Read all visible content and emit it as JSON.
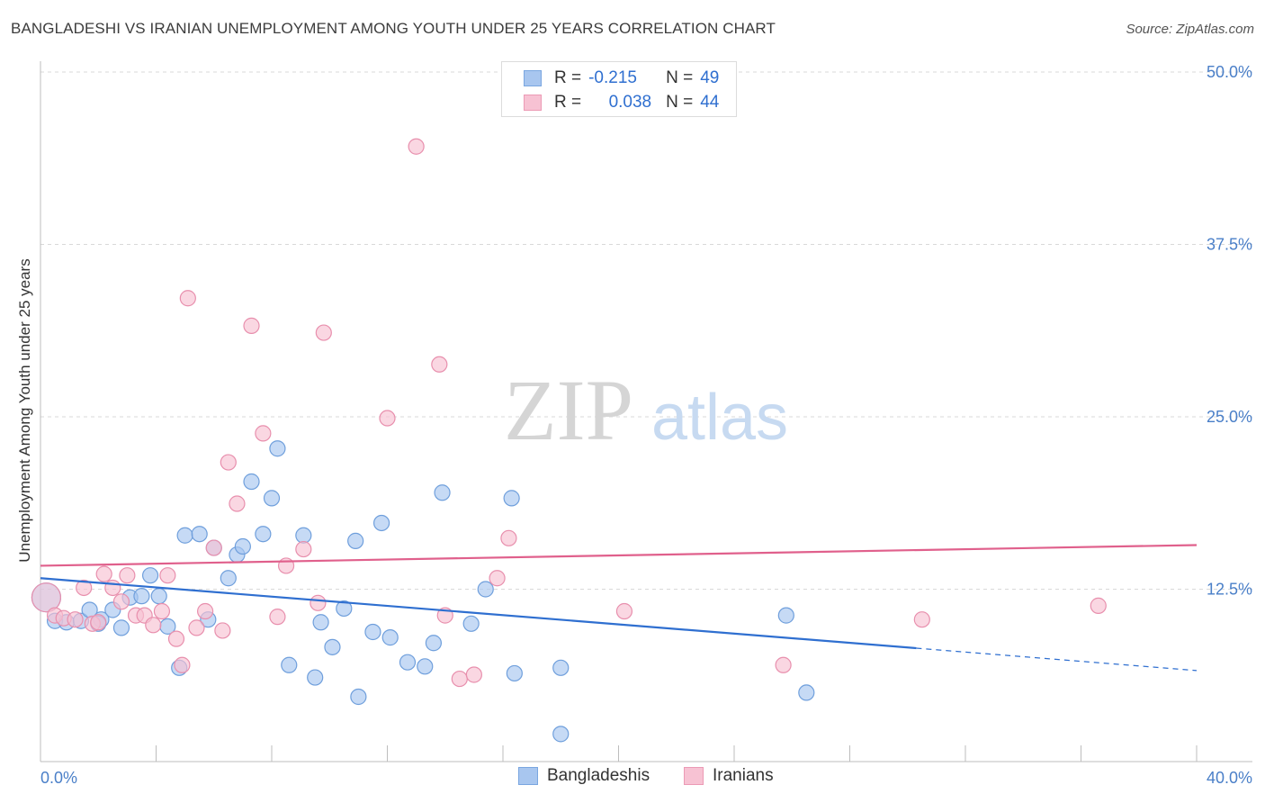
{
  "header": {
    "title": "BANGLADESHI VS IRANIAN UNEMPLOYMENT AMONG YOUTH UNDER 25 YEARS CORRELATION CHART",
    "source": "Source: ZipAtlas.com"
  },
  "legend": {
    "rows": [
      {
        "r_label": "R =",
        "r_value": "-0.215",
        "n_label": "N =",
        "n_value": "49",
        "color": "#a8c6ef",
        "border": "#7aa6e0"
      },
      {
        "r_label": "R =",
        "r_value": "0.038",
        "n_label": "N =",
        "n_value": "44",
        "color": "#f7c2d3",
        "border": "#ec9ab5"
      }
    ]
  },
  "watermark": {
    "zip": "ZIP",
    "atlas": "atlas"
  },
  "bottom_legend": {
    "a": "Bangladeshis",
    "b": "Iranians"
  },
  "colors": {
    "blue_fill": "#a8c6ef",
    "blue_stroke": "#6f9fdc",
    "blue_line": "#2f6fd0",
    "pink_fill": "#f7c2d3",
    "pink_stroke": "#e88fad",
    "pink_line": "#e0608c",
    "grid": "#d9d9d9",
    "tick_text": "#4a7fc8"
  },
  "chart_data": {
    "type": "scatter",
    "title": "BANGLADESHI VS IRANIAN UNEMPLOYMENT AMONG YOUTH UNDER 25 YEARS CORRELATION CHART",
    "xlabel": "",
    "ylabel": "Unemployment Among Youth under 25 years",
    "xlim": [
      0,
      40
    ],
    "ylim": [
      0,
      50
    ],
    "x_tick_labels": [
      "0.0%",
      "40.0%"
    ],
    "y_ticks": [
      12.5,
      25.0,
      37.5,
      50.0
    ],
    "y_tick_labels": [
      "12.5%",
      "25.0%",
      "37.5%",
      "50.0%"
    ],
    "grid": "horizontal dashed",
    "legend_position": "top-center",
    "series": [
      {
        "name": "Bangladeshis",
        "points": [
          [
            0.2,
            11.9
          ],
          [
            0.5,
            10.2
          ],
          [
            0.9,
            10.1
          ],
          [
            1.4,
            10.2
          ],
          [
            1.7,
            11.0
          ],
          [
            2.1,
            10.3
          ],
          [
            2.5,
            11.0
          ],
          [
            2.8,
            9.7
          ],
          [
            3.1,
            11.9
          ],
          [
            3.5,
            12.0
          ],
          [
            3.8,
            13.5
          ],
          [
            4.1,
            12.0
          ],
          [
            4.4,
            9.8
          ],
          [
            5.0,
            16.4
          ],
          [
            5.5,
            16.5
          ],
          [
            5.8,
            10.3
          ],
          [
            6.0,
            15.5
          ],
          [
            6.5,
            13.3
          ],
          [
            6.8,
            15.0
          ],
          [
            7.0,
            15.6
          ],
          [
            7.3,
            20.3
          ],
          [
            7.7,
            16.5
          ],
          [
            8.0,
            19.1
          ],
          [
            8.2,
            22.7
          ],
          [
            8.6,
            7.0
          ],
          [
            9.1,
            16.4
          ],
          [
            9.5,
            6.1
          ],
          [
            9.7,
            10.1
          ],
          [
            10.1,
            8.3
          ],
          [
            10.5,
            11.1
          ],
          [
            10.9,
            16.0
          ],
          [
            11.0,
            4.7
          ],
          [
            11.5,
            9.4
          ],
          [
            11.8,
            17.3
          ],
          [
            12.1,
            9.0
          ],
          [
            12.7,
            7.2
          ],
          [
            13.3,
            6.9
          ],
          [
            13.6,
            8.6
          ],
          [
            13.9,
            19.5
          ],
          [
            14.9,
            10.0
          ],
          [
            15.4,
            12.5
          ],
          [
            16.3,
            19.1
          ],
          [
            16.4,
            6.4
          ],
          [
            18.0,
            2.0
          ],
          [
            18.0,
            6.8
          ],
          [
            25.8,
            10.6
          ],
          [
            26.5,
            5.0
          ],
          [
            4.8,
            6.8
          ],
          [
            2.0,
            10.0
          ]
        ]
      },
      {
        "name": "Iranians",
        "points": [
          [
            0.2,
            11.9
          ],
          [
            0.5,
            10.6
          ],
          [
            0.8,
            10.4
          ],
          [
            1.2,
            10.3
          ],
          [
            1.5,
            12.6
          ],
          [
            1.8,
            10.0
          ],
          [
            2.0,
            10.1
          ],
          [
            2.2,
            13.6
          ],
          [
            2.5,
            12.6
          ],
          [
            2.8,
            11.6
          ],
          [
            3.0,
            13.5
          ],
          [
            3.3,
            10.6
          ],
          [
            3.6,
            10.6
          ],
          [
            3.9,
            9.9
          ],
          [
            4.2,
            10.9
          ],
          [
            4.4,
            13.5
          ],
          [
            4.7,
            8.9
          ],
          [
            4.9,
            7.0
          ],
          [
            5.1,
            33.6
          ],
          [
            5.4,
            9.7
          ],
          [
            5.7,
            10.9
          ],
          [
            6.0,
            15.5
          ],
          [
            6.3,
            9.5
          ],
          [
            6.5,
            21.7
          ],
          [
            6.8,
            18.7
          ],
          [
            7.3,
            31.6
          ],
          [
            7.7,
            23.8
          ],
          [
            8.2,
            10.5
          ],
          [
            8.5,
            14.2
          ],
          [
            9.1,
            15.4
          ],
          [
            9.6,
            11.5
          ],
          [
            9.8,
            31.1
          ],
          [
            12.0,
            24.9
          ],
          [
            13.0,
            44.6
          ],
          [
            13.8,
            28.8
          ],
          [
            14.0,
            10.6
          ],
          [
            14.5,
            6.0
          ],
          [
            15.0,
            6.3
          ],
          [
            15.8,
            13.3
          ],
          [
            16.2,
            16.2
          ],
          [
            20.2,
            10.9
          ],
          [
            25.7,
            7.0
          ],
          [
            30.5,
            10.3
          ],
          [
            36.6,
            11.3
          ]
        ]
      }
    ],
    "trendlines": [
      {
        "series": "Bangladeshis",
        "from": [
          0,
          13.3
        ],
        "to": [
          40,
          6.6
        ],
        "solid_until_x": 30.3
      },
      {
        "series": "Iranians",
        "from": [
          0,
          14.2
        ],
        "to": [
          40,
          15.7
        ]
      }
    ]
  }
}
